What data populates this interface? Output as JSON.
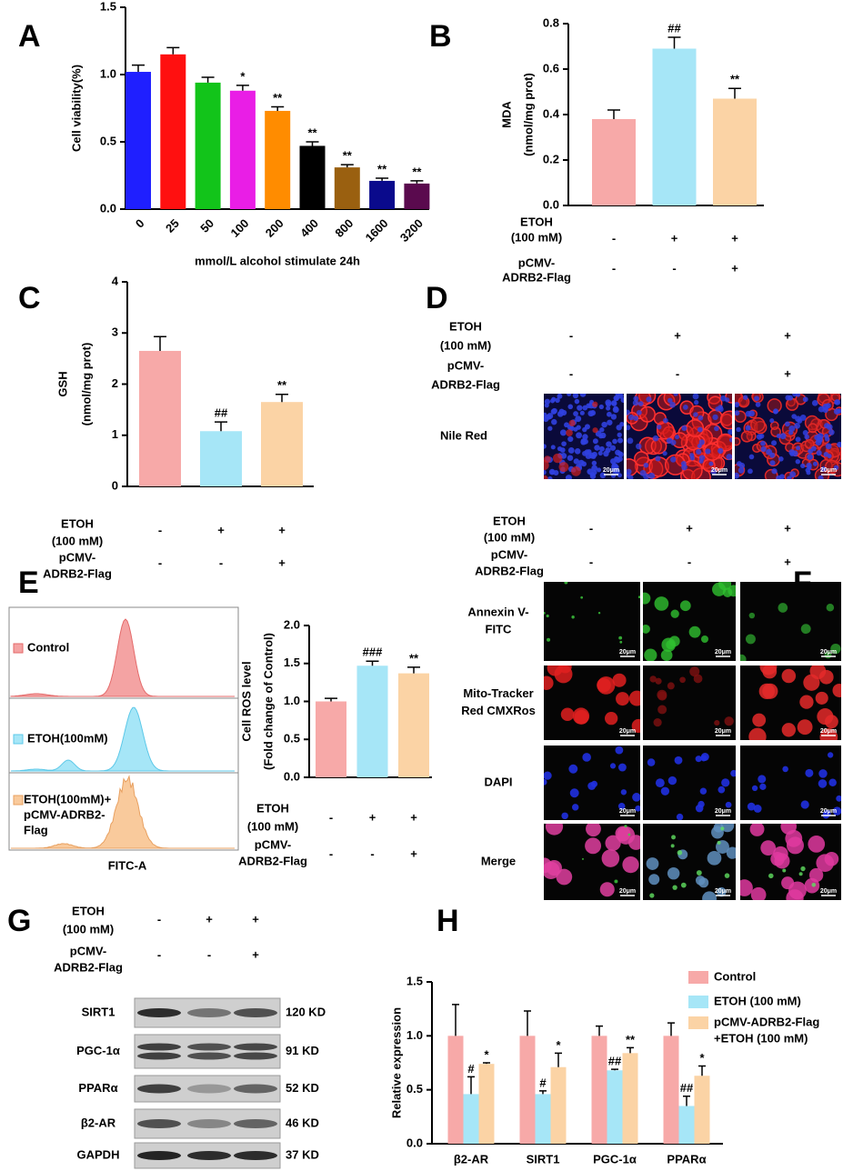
{
  "chart_data": [
    {
      "type": "bar",
      "label": "A",
      "ylabel": "Cell viability(%)",
      "xlabel": "mmol/L alcohol stimulate 24h",
      "categories": [
        "0",
        "25",
        "50",
        "100",
        "200",
        "400",
        "800",
        "1600",
        "3200"
      ],
      "values": [
        1.02,
        1.15,
        0.94,
        0.88,
        0.73,
        0.47,
        0.31,
        0.21,
        0.19
      ],
      "errors": [
        0.05,
        0.05,
        0.04,
        0.04,
        0.03,
        0.03,
        0.02,
        0.02,
        0.02
      ],
      "annotations": [
        null,
        null,
        null,
        "*",
        "**",
        "**",
        "**",
        "**",
        "**"
      ],
      "colors": [
        "#1f1fff",
        "#ff1010",
        "#12c41a",
        "#e91ee6",
        "#ff8c00",
        "#000000",
        "#9a6010",
        "#0a0a8c",
        "#5a0a4e"
      ],
      "ylim": [
        0,
        1.5
      ],
      "yticks": [
        {
          "value": 0,
          "label": "0.0"
        },
        0.5,
        {
          "value": 1,
          "label": "1.0"
        },
        1.5
      ]
    },
    {
      "type": "bar",
      "label": "B",
      "ylabel": [
        "MDA",
        "(nmol/mg prot)"
      ],
      "values": [
        0.38,
        0.69,
        0.47
      ],
      "errors": [
        0.04,
        0.05,
        0.045
      ],
      "annotations": [
        null,
        "##",
        "**"
      ],
      "colors": [
        "#f7a9a8",
        "#a6e6f7",
        "#fbd3a5"
      ],
      "ylim": [
        0,
        0.8
      ],
      "yticks": [
        {
          "value": 0,
          "label": "0.0"
        },
        0.2,
        0.4,
        0.6,
        0.8
      ],
      "conditions": [
        {
          "label": [
            "ETOH",
            "(100 mM)"
          ],
          "marks": [
            "-",
            "+",
            "+"
          ]
        },
        {
          "label": [
            "pCMV-",
            "ADRB2-Flag"
          ],
          "marks": [
            "-",
            "-",
            "+"
          ]
        }
      ]
    },
    {
      "type": "bar",
      "label": "C",
      "ylabel": [
        "GSH",
        "(nmol/mg prot)"
      ],
      "values": [
        2.65,
        1.08,
        1.65
      ],
      "errors": [
        0.28,
        0.18,
        0.15
      ],
      "annotations": [
        null,
        "##",
        "**"
      ],
      "colors": [
        "#f7a9a8",
        "#a6e6f7",
        "#fbd3a5"
      ],
      "ylim": [
        0,
        4
      ],
      "yticks": [
        0,
        1,
        2,
        3,
        4
      ],
      "conditions": [
        {
          "label": [
            "ETOH",
            "(100 mM)"
          ],
          "marks": [
            "-",
            "+",
            "+"
          ]
        },
        {
          "label": [
            "pCMV-",
            "ADRB2-Flag"
          ],
          "marks": [
            "-",
            "-",
            "+"
          ]
        }
      ]
    },
    {
      "type": "bar",
      "label": "E",
      "ylabel": [
        "Cell ROS level",
        "(Fold change of Control)"
      ],
      "values": [
        1.0,
        1.47,
        1.37
      ],
      "errors": [
        0.04,
        0.06,
        0.08
      ],
      "annotations": [
        null,
        "###",
        "**"
      ],
      "colors": [
        "#f7a9a8",
        "#a6e6f7",
        "#fbd3a5"
      ],
      "ylim": [
        0,
        2
      ],
      "yticks": [
        {
          "value": 0,
          "label": "0.0"
        },
        0.5,
        {
          "value": 1,
          "label": "1.0"
        },
        1.5,
        {
          "value": 2,
          "label": "2.0"
        }
      ],
      "conditions": [
        {
          "label": [
            "ETOH",
            "(100 mM)"
          ],
          "marks": [
            "-",
            "+",
            "+"
          ]
        },
        {
          "label": [
            "pCMV-",
            "ADRB2-Flag"
          ],
          "marks": [
            "-",
            "-",
            "+"
          ]
        }
      ]
    },
    {
      "type": "bar",
      "label": "H",
      "ylabel": "Relative expression",
      "categories": [
        "β2-AR",
        "SIRT1",
        "PGC-1α",
        "PPARα"
      ],
      "series": [
        {
          "name": "Control",
          "color": "#f7a9a8",
          "values": [
            1,
            1,
            1,
            1
          ],
          "errors": [
            0.29,
            0.23,
            0.09,
            0.12
          ],
          "annotations": [
            null,
            null,
            null,
            null
          ]
        },
        {
          "name": "ETOH (100 mM)",
          "color": "#a6e6f7",
          "values": [
            0.46,
            0.46,
            0.68,
            0.35
          ],
          "errors": [
            0.16,
            0.03,
            0.01,
            0.09
          ],
          "annotations": [
            "#",
            "#",
            "##",
            "##"
          ]
        },
        {
          "name": [
            "pCMV-ADRB2-Flag",
            "+ETOH (100 mM)"
          ],
          "color": "#fbd3a5",
          "values": [
            0.74,
            0.71,
            0.84,
            0.63
          ],
          "errors": [
            0.01,
            0.13,
            0.05,
            0.09
          ],
          "annotations": [
            "*",
            "*",
            "**",
            "*"
          ]
        }
      ],
      "ylim": [
        0,
        1.5
      ],
      "yticks": [
        {
          "value": 0,
          "label": "0.0"
        },
        0.5,
        {
          "value": 1,
          "label": "1.0"
        },
        1.5
      ]
    }
  ],
  "nile_red_panel": {
    "label": "D",
    "conditions": [
      {
        "label": [
          "ETOH",
          "(100 mM)"
        ],
        "marks": [
          "-",
          "+",
          "+"
        ]
      },
      {
        "label": [
          "pCMV-",
          "ADRB2-Flag"
        ],
        "marks": [
          "-",
          "-",
          "+"
        ]
      }
    ],
    "row_label": "Nile Red",
    "scale_bar": "20μm"
  },
  "flow_panel": {
    "legend": [
      [
        "Control"
      ],
      [
        "ETOH(100mM)"
      ],
      [
        "ETOH(100mM)+",
        "pCMV-ADRB2-",
        "Flag"
      ]
    ],
    "xlabel": "FITC-A"
  },
  "fluorescence_panel": {
    "label": "F",
    "conditions": [
      {
        "label": [
          "ETOH",
          "(100 mM)"
        ],
        "marks": [
          "-",
          "+",
          "+"
        ]
      },
      {
        "label": [
          "pCMV-",
          "ADRB2-Flag"
        ],
        "marks": [
          "-",
          "-",
          "+"
        ]
      }
    ],
    "rows": [
      [
        "Annexin V-",
        "FITC"
      ],
      [
        "Mito-Tracker",
        "Red CMXRos"
      ],
      [
        "DAPI"
      ],
      [
        "Merge"
      ]
    ],
    "scale_bar": "20μm"
  },
  "western_blot": {
    "label": "G",
    "conditions": [
      {
        "label": [
          "ETOH",
          "(100 mM)"
        ],
        "marks": [
          "-",
          "+",
          "+"
        ]
      },
      {
        "label": [
          "pCMV-",
          "ADRB2-Flag"
        ],
        "marks": [
          "-",
          "-",
          "+"
        ]
      }
    ],
    "bands": [
      {
        "name": "SIRT1",
        "size": "120 KD"
      },
      {
        "name": "PGC-1α",
        "size": "91 KD"
      },
      {
        "name": "PPARα",
        "size": "52 KD"
      },
      {
        "name": "β2-AR",
        "size": "46 KD"
      },
      {
        "name": "GAPDH",
        "size": "37 KD"
      }
    ]
  }
}
